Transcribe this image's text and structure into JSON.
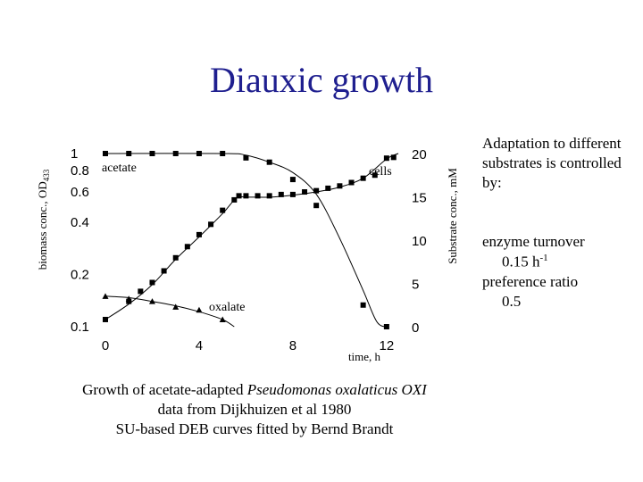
{
  "title": "Diauxic growth",
  "chart_data": {
    "type": "scatter",
    "left_axis": {
      "label": "biomass conc., OD",
      "label_sub": "433",
      "scale": "log",
      "ticks": [
        0.1,
        0.2,
        0.4,
        0.6,
        0.8,
        1
      ],
      "tick_labels": [
        "0.1",
        "0.2",
        "0.4",
        "0.6",
        "0.8",
        "1"
      ],
      "range": [
        0.1,
        1
      ]
    },
    "right_axis": {
      "label": "Substrate conc., mM",
      "scale": "linear",
      "ticks": [
        0,
        5,
        10,
        15,
        20
      ],
      "tick_labels": [
        "0",
        "5",
        "10",
        "15",
        "20"
      ],
      "range": [
        0,
        20
      ]
    },
    "x_axis": {
      "label": "time, h",
      "ticks": [
        0,
        4,
        8,
        12
      ],
      "tick_labels": [
        "0",
        "4",
        "8",
        "12"
      ],
      "range": [
        0,
        12.5
      ]
    },
    "annotations": {
      "acetate": "acetate",
      "cells": "cells",
      "oxalate": "oxalate"
    },
    "series": [
      {
        "name": "cells",
        "axis": "left",
        "marker": "square",
        "points": [
          [
            0,
            0.11
          ],
          [
            1,
            0.14
          ],
          [
            1.5,
            0.16
          ],
          [
            2,
            0.18
          ],
          [
            2.5,
            0.21
          ],
          [
            3,
            0.25
          ],
          [
            3.5,
            0.29
          ],
          [
            4,
            0.34
          ],
          [
            4.5,
            0.39
          ],
          [
            5,
            0.47
          ],
          [
            5.5,
            0.54
          ],
          [
            5.7,
            0.57
          ],
          [
            6,
            0.57
          ],
          [
            6.5,
            0.57
          ],
          [
            7,
            0.57
          ],
          [
            7.5,
            0.58
          ],
          [
            8,
            0.58
          ],
          [
            8.5,
            0.6
          ],
          [
            9,
            0.61
          ],
          [
            9.5,
            0.63
          ],
          [
            10,
            0.65
          ],
          [
            10.5,
            0.68
          ],
          [
            11,
            0.72
          ],
          [
            11.5,
            0.75
          ],
          [
            12,
            0.94
          ],
          [
            12.3,
            0.95
          ]
        ],
        "curve": [
          [
            0,
            0.11
          ],
          [
            1,
            0.135
          ],
          [
            2,
            0.175
          ],
          [
            3,
            0.245
          ],
          [
            4,
            0.33
          ],
          [
            5,
            0.45
          ],
          [
            5.6,
            0.555
          ],
          [
            6,
            0.56
          ],
          [
            7,
            0.56
          ],
          [
            8,
            0.575
          ],
          [
            9,
            0.6
          ],
          [
            10,
            0.64
          ],
          [
            11,
            0.72
          ],
          [
            12,
            0.93
          ],
          [
            12.5,
            1.0
          ]
        ]
      },
      {
        "name": "acetate",
        "axis": "right",
        "marker": "square",
        "points": [
          [
            0,
            20
          ],
          [
            1,
            20
          ],
          [
            2,
            20
          ],
          [
            3,
            20
          ],
          [
            4,
            20
          ],
          [
            5,
            20
          ],
          [
            6,
            19.5
          ],
          [
            7,
            19
          ],
          [
            8,
            17
          ],
          [
            9,
            14
          ],
          [
            11,
            2.5
          ],
          [
            12,
            0
          ]
        ],
        "curve": [
          [
            0,
            20
          ],
          [
            5,
            20
          ],
          [
            6,
            19.8
          ],
          [
            7,
            19
          ],
          [
            8,
            17.8
          ],
          [
            9,
            15.3
          ],
          [
            10,
            10.2
          ],
          [
            11,
            4.2
          ],
          [
            11.6,
            0.5
          ],
          [
            12.1,
            0
          ]
        ]
      },
      {
        "name": "oxalate",
        "axis": "left",
        "marker": "triangle",
        "points": [
          [
            0,
            0.15
          ],
          [
            1,
            0.145
          ],
          [
            2,
            0.14
          ],
          [
            3,
            0.13
          ],
          [
            4,
            0.125
          ],
          [
            5,
            0.11
          ]
        ],
        "curve": [
          [
            0,
            0.15
          ],
          [
            1,
            0.147
          ],
          [
            2,
            0.14
          ],
          [
            3,
            0.132
          ],
          [
            4,
            0.122
          ],
          [
            5,
            0.11
          ],
          [
            5.5,
            0.1
          ]
        ]
      }
    ]
  },
  "side_notes": {
    "heading": "Adaptation to different substrates is controlled by:",
    "turnover_label": "enzyme turnover",
    "turnover_value": "0.15 h",
    "turnover_exp": "-1",
    "preference_label": "preference ratio",
    "preference_value": "0.5"
  },
  "caption": {
    "line1_prefix": "Growth of acetate-adapted ",
    "line1_species": "Pseudomonas oxalaticus OXI",
    "line2": "data from Dijkhuizen et al 1980",
    "line3": "SU-based DEB curves fitted by Bernd Brandt"
  }
}
